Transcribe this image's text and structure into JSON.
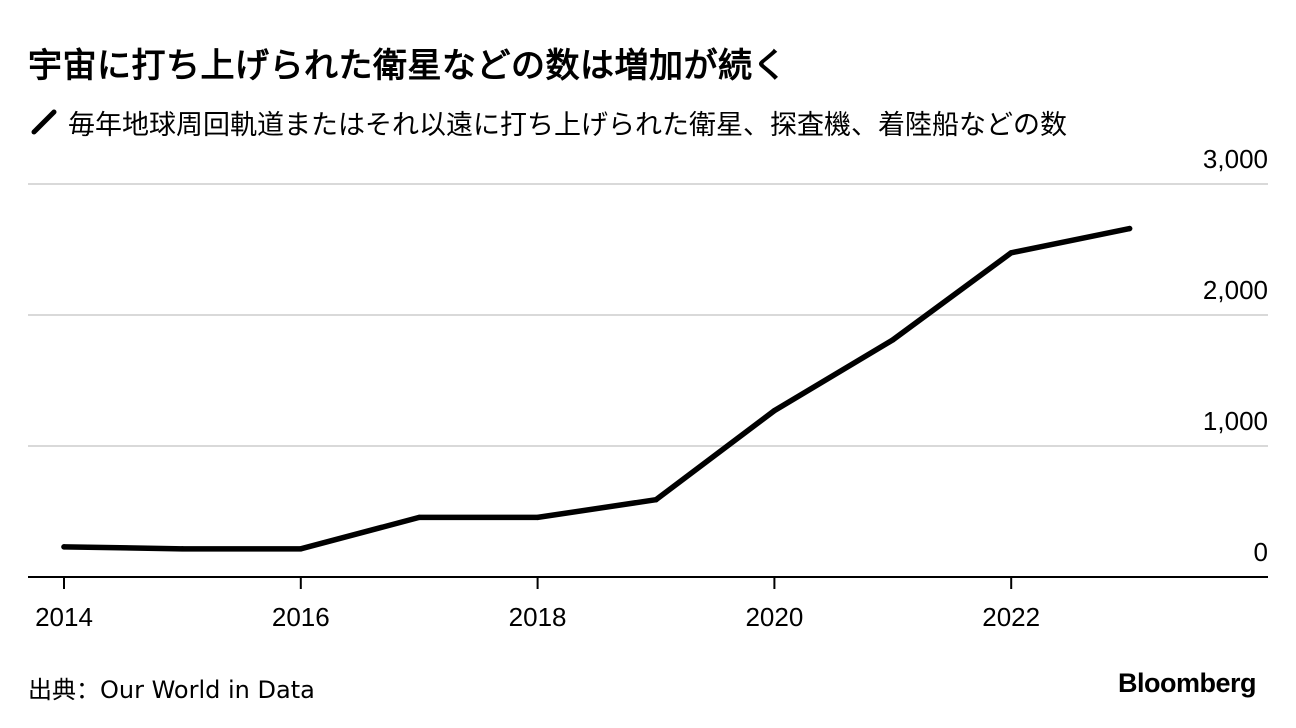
{
  "chart_data": {
    "type": "line",
    "title": "宇宙に打ち上げられた衛星などの数は増加が続く",
    "legend": [
      "毎年地球周回軌道またはそれ以遠に打ち上げられた衛星、探査機、着陸船などの数"
    ],
    "x": [
      2014,
      2015,
      2016,
      2017,
      2018,
      2019,
      2020,
      2021,
      2022,
      2023
    ],
    "series": [
      {
        "name": "毎年地球周回軌道またはそれ以遠に打ち上げられた衛星、探査機、着陸船などの数",
        "values": [
          230,
          215,
          215,
          455,
          455,
          590,
          1270,
          1810,
          2475,
          2660
        ]
      }
    ],
    "xticks": [
      2014,
      2016,
      2018,
      2020,
      2022
    ],
    "xtick_labels": [
      "2014",
      "2016",
      "2018",
      "2020",
      "2022"
    ],
    "yticks": [
      0,
      1000,
      2000,
      3000
    ],
    "ytick_labels": [
      "0",
      "1,000",
      "2,000",
      "3,000"
    ],
    "xlim": [
      2014,
      2024
    ],
    "ylim": [
      0,
      3000
    ],
    "grid": true,
    "y_axis_side": "right",
    "line_color": "#000000"
  },
  "source": "出典：Our World in Data",
  "brand": "Bloomberg"
}
